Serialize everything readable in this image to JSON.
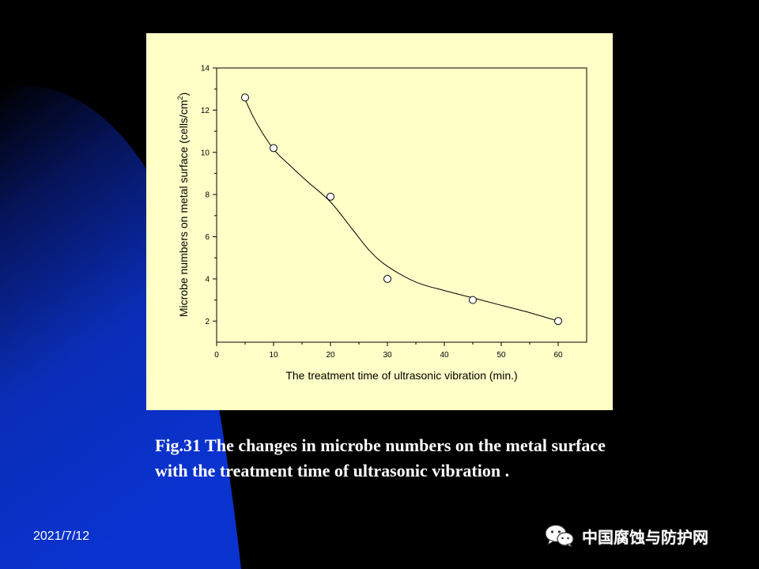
{
  "slide": {
    "caption": "Fig.31 The changes in microbe numbers on the metal surface with the treatment time of ultrasonic vibration .",
    "date": "2021/7/12",
    "brand": "中国腐蚀与防护网",
    "brand_icon": "wechat-icon",
    "colors": {
      "background": "#000000",
      "swoosh": "#0a30c8",
      "chart_bg": "#ffffc8",
      "text": "#ffffff"
    }
  },
  "chart_data": {
    "type": "scatter",
    "xlabel": "The treatment time of ultrasonic vibration (min.)",
    "ylabel": "Microbe numbers on  metal surface (cells/cm",
    "ylabel_sup": "2",
    "ylabel_close": ")",
    "xlim": [
      0,
      65
    ],
    "ylim": [
      1,
      14
    ],
    "xticks": [
      0,
      10,
      20,
      30,
      40,
      50,
      60
    ],
    "yticks": [
      2,
      4,
      6,
      8,
      10,
      12,
      14
    ],
    "series": [
      {
        "x": [
          5,
          10,
          20,
          30,
          45,
          60
        ],
        "y": [
          12.6,
          10.2,
          7.9,
          4.0,
          3.0,
          2.0
        ]
      }
    ],
    "fit_curve": {
      "x": [
        5,
        7,
        10,
        13,
        16,
        20,
        24,
        27,
        30,
        35,
        40,
        45,
        50,
        55,
        60
      ],
      "y": [
        12.5,
        11.4,
        10.15,
        9.35,
        8.6,
        7.65,
        6.3,
        5.3,
        4.6,
        3.85,
        3.45,
        3.1,
        2.75,
        2.4,
        2.0
      ]
    },
    "grid": false
  }
}
